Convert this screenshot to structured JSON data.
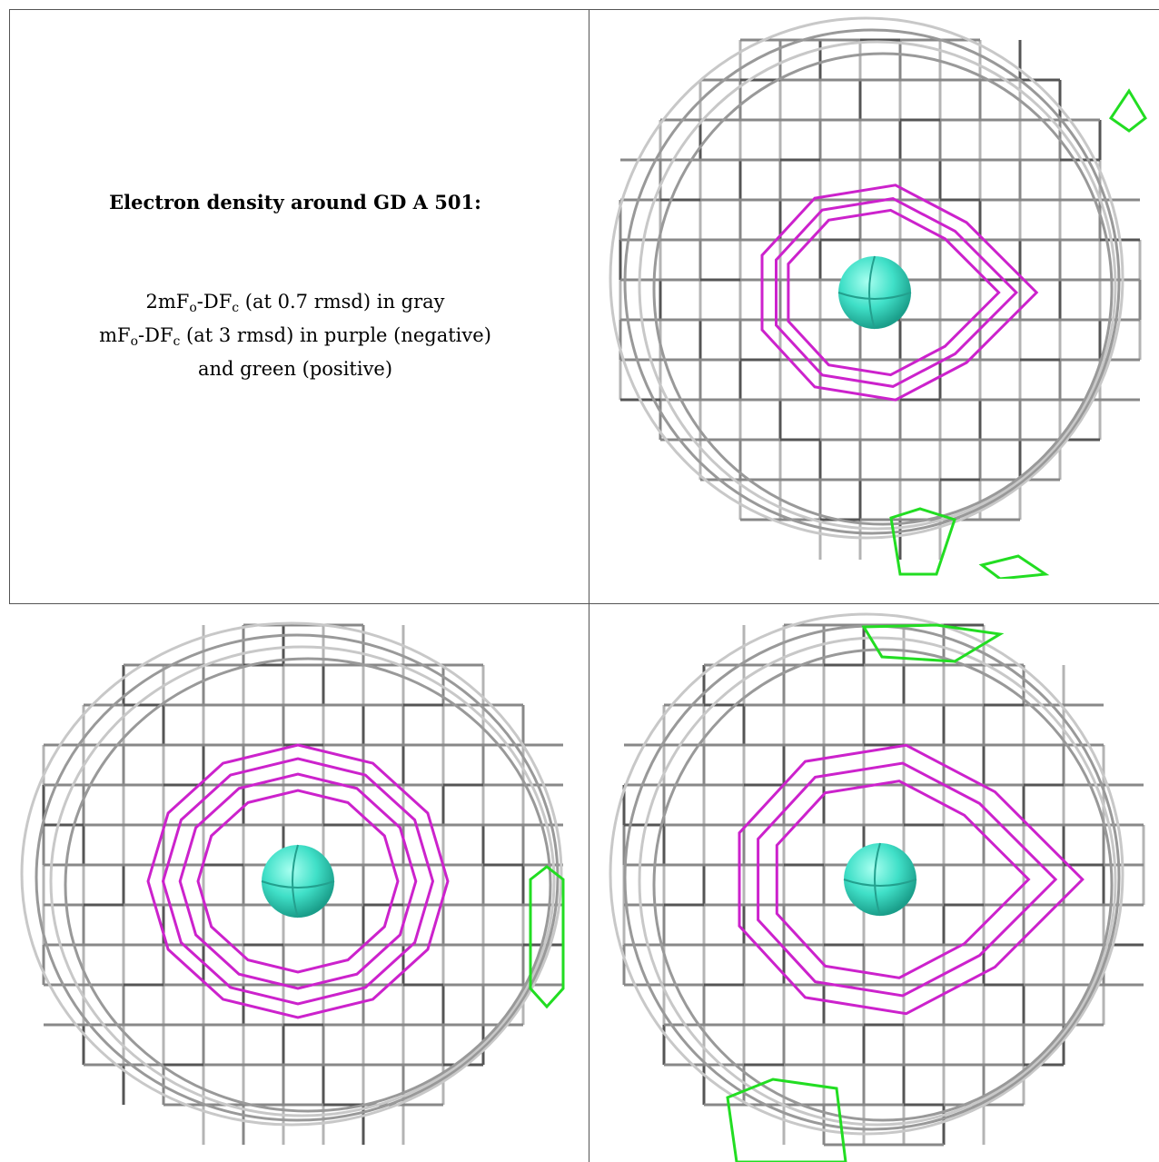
{
  "figure": {
    "title": "Electron density around GD A 501:",
    "legend_lines": [
      {
        "prefix": "2mF",
        "sub1": "o",
        "mid": "-DF",
        "sub2": "c",
        "rest": " (at 0.7 rmsd) in gray"
      },
      {
        "prefix": "mF",
        "sub1": "o",
        "mid": "-DF",
        "sub2": "c",
        "rest": " (at 3 rmsd) in purple (negative)"
      },
      {
        "text": "and green (positive)"
      }
    ]
  },
  "views": [
    {
      "name": "view-top-right",
      "density_color": "#b4b4b4",
      "negative_color": "#cc22cc",
      "positive_color": "#22dd22",
      "atom_color": "#40e0c8"
    },
    {
      "name": "view-bottom-left",
      "density_color": "#b4b4b4",
      "negative_color": "#cc22cc",
      "positive_color": "#22dd22",
      "atom_color": "#40e0c8"
    },
    {
      "name": "view-bottom-right",
      "density_color": "#b4b4b4",
      "negative_color": "#cc22cc",
      "positive_color": "#22dd22",
      "atom_color": "#40e0c8"
    }
  ]
}
